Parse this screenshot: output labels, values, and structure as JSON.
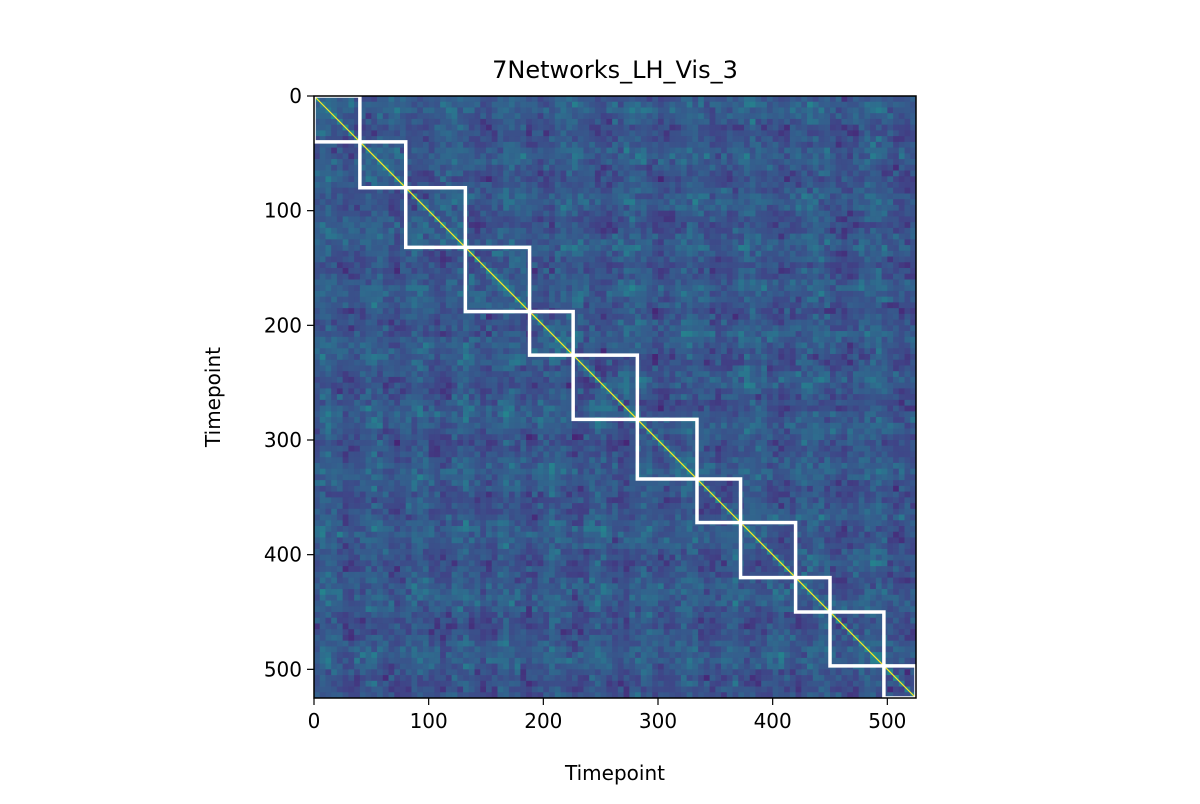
{
  "chart_data": {
    "type": "heatmap",
    "title": "7Networks_LH_Vis_3",
    "xlabel": "Timepoint",
    "ylabel": "Timepoint",
    "xlim": [
      0,
      525
    ],
    "ylim": [
      525,
      0
    ],
    "x_ticks": [
      0,
      100,
      200,
      300,
      400,
      500
    ],
    "y_ticks": [
      0,
      100,
      200,
      300,
      400,
      500
    ],
    "colormap": "viridis",
    "grid": false,
    "matrix_description_values": {
      "size": 525,
      "diagonal_value": 1.0,
      "off_diagonal_typical_range": [
        -0.3,
        0.4
      ]
    },
    "segment_boundaries": [
      0,
      40,
      80,
      132,
      188,
      226,
      282,
      334,
      372,
      420,
      450,
      497,
      525
    ],
    "box_color": "#ffffff"
  }
}
